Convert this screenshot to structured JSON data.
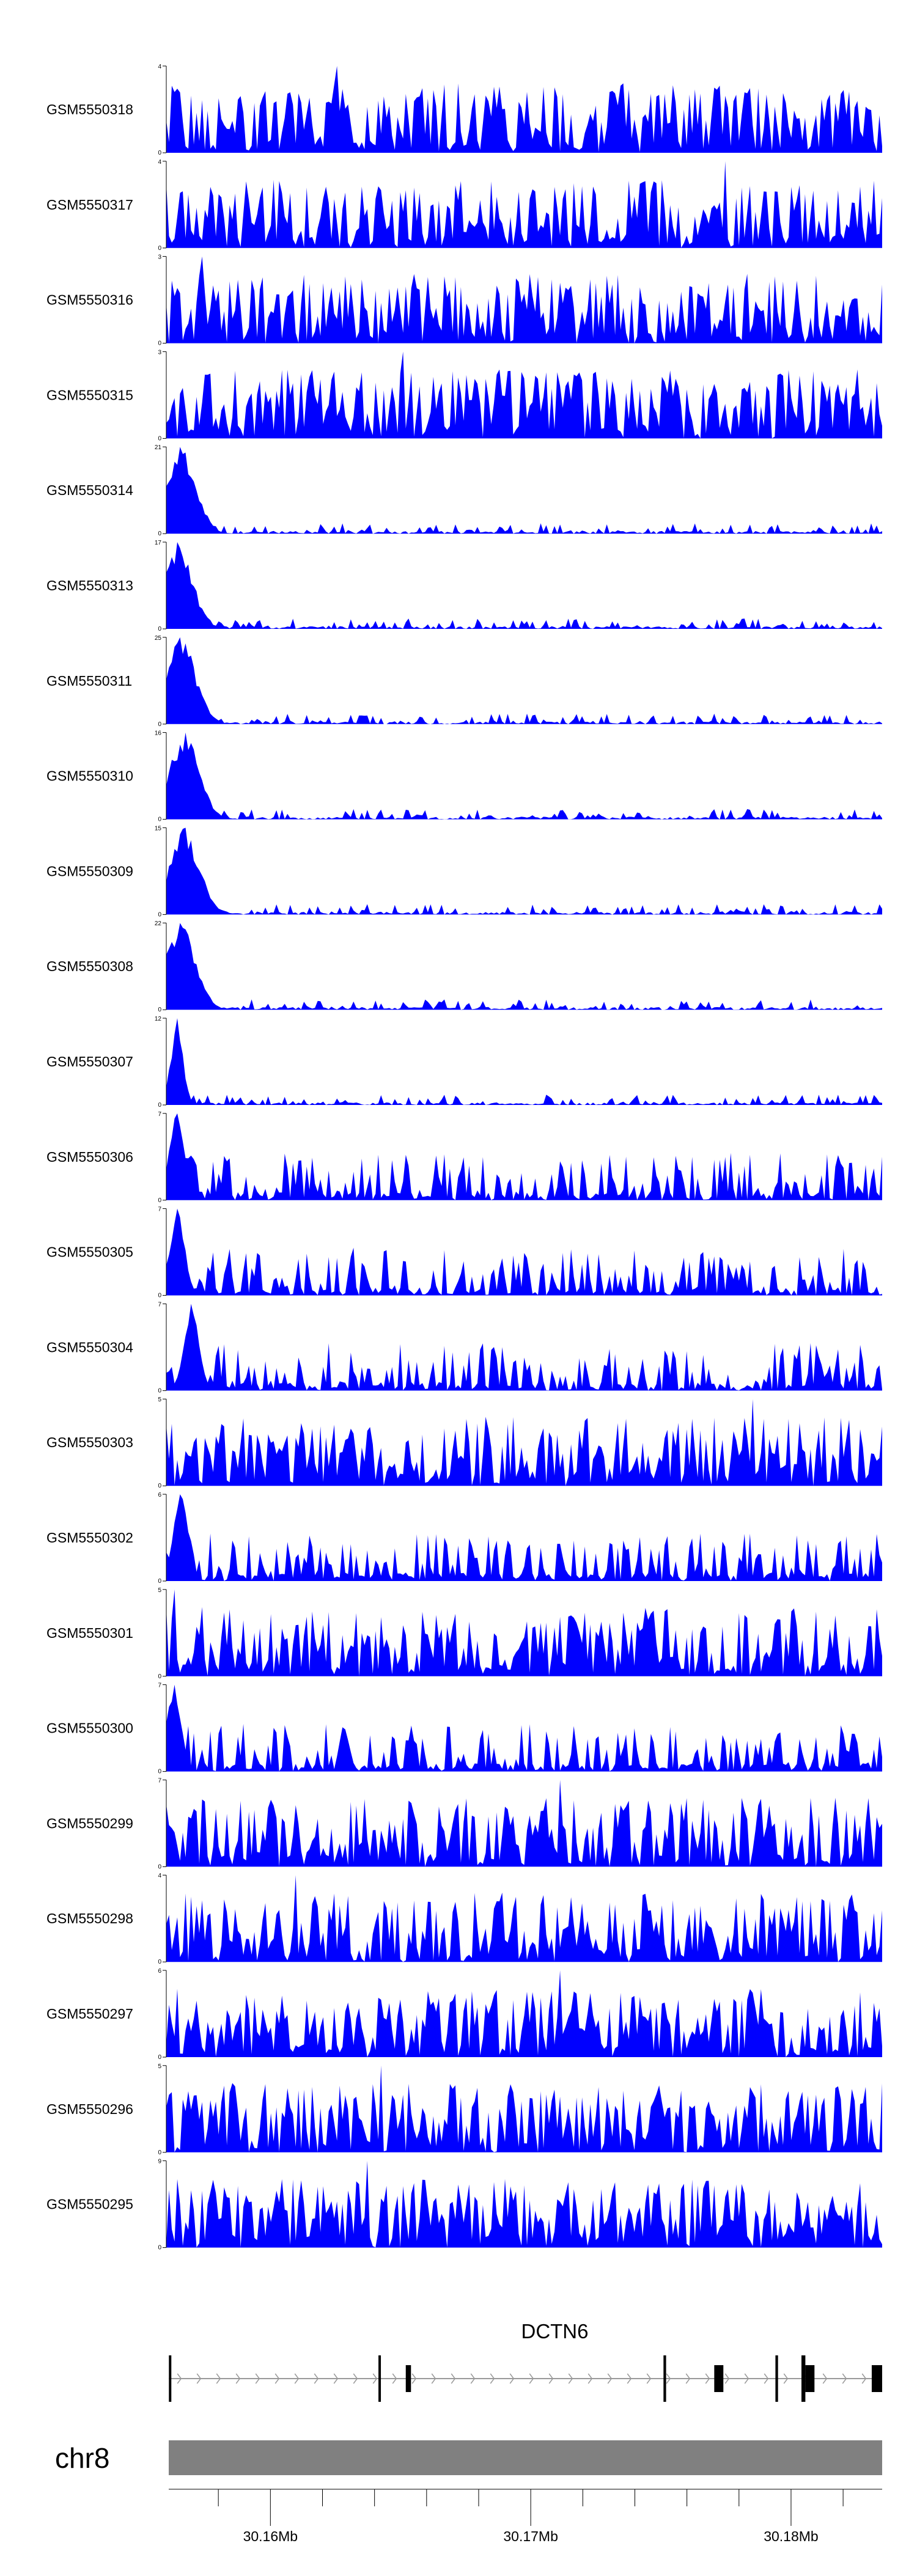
{
  "chart_data": {
    "type": "area",
    "genome": {
      "chromosome": "chr8",
      "start": 30156000,
      "end": 30183500
    },
    "x_axis": {
      "major_ticks": [
        30160000,
        30170000,
        30180000
      ],
      "major_labels": [
        "30.16Mb",
        "30.17Mb",
        "30.18Mb"
      ],
      "minor_ticks": [
        30158000,
        30162000,
        30164000,
        30166000,
        30168000,
        30172000,
        30174000,
        30176000,
        30178000,
        30182000
      ]
    },
    "colors": {
      "signal": "#0000ff",
      "ideogram": "#808080",
      "gene": "#000000",
      "intron": "#999999"
    },
    "tracks": [
      {
        "name": "GSM5550318",
        "ymax": 4,
        "ymax_label": "4",
        "ymin_label": "0",
        "profile": "flat",
        "peak_pos": 0.24,
        "peak_frac": 1.0,
        "seed": 18
      },
      {
        "name": "GSM5550317",
        "ymax": 4,
        "ymax_label": "4",
        "ymin_label": "0",
        "profile": "flat",
        "peak_pos": 0.78,
        "peak_frac": 1.0,
        "seed": 17
      },
      {
        "name": "GSM5550316",
        "ymax": 3,
        "ymax_label": "3",
        "ymin_label": "0",
        "profile": "flat",
        "peak_pos": 0.05,
        "peak_frac": 1.0,
        "seed": 16
      },
      {
        "name": "GSM5550315",
        "ymax": 3,
        "ymax_label": "3",
        "ymin_label": "0",
        "profile": "flat",
        "peak_pos": 0.33,
        "peak_frac": 1.0,
        "seed": 15
      },
      {
        "name": "GSM5550314",
        "ymax": 21,
        "ymax_label": "21",
        "ymin_label": "0",
        "profile": "left",
        "peak_pos": 0.02,
        "peak_frac": 1.0,
        "seed": 14
      },
      {
        "name": "GSM5550313",
        "ymax": 17,
        "ymax_label": "17",
        "ymin_label": "0",
        "profile": "left",
        "peak_pos": 0.015,
        "peak_frac": 1.0,
        "seed": 13
      },
      {
        "name": "GSM5550311",
        "ymax": 25,
        "ymax_label": "25",
        "ymin_label": "0",
        "profile": "left",
        "peak_pos": 0.02,
        "peak_frac": 1.0,
        "seed": 11
      },
      {
        "name": "GSM5550310",
        "ymax": 16,
        "ymax_label": "16",
        "ymin_label": "0",
        "profile": "left",
        "peak_pos": 0.025,
        "peak_frac": 1.0,
        "seed": 10
      },
      {
        "name": "GSM5550309",
        "ymax": 15,
        "ymax_label": "15",
        "ymin_label": "0",
        "profile": "left",
        "peak_pos": 0.025,
        "peak_frac": 1.0,
        "seed": 9
      },
      {
        "name": "GSM5550308",
        "ymax": 22,
        "ymax_label": "22",
        "ymin_label": "0",
        "profile": "left",
        "peak_pos": 0.02,
        "peak_frac": 1.0,
        "seed": 8
      },
      {
        "name": "GSM5550307",
        "ymax": 12,
        "ymax_label": "12",
        "ymin_label": "0",
        "profile": "left-thin",
        "peak_pos": 0.015,
        "peak_frac": 1.0,
        "seed": 7
      },
      {
        "name": "GSM5550306",
        "ymax": 7,
        "ymax_label": "7",
        "ymin_label": "0",
        "profile": "medium",
        "peak_pos": 0.015,
        "peak_frac": 1.0,
        "seed": 6
      },
      {
        "name": "GSM5550305",
        "ymax": 7,
        "ymax_label": "7",
        "ymin_label": "0",
        "profile": "medium",
        "peak_pos": 0.015,
        "peak_frac": 1.0,
        "seed": 5
      },
      {
        "name": "GSM5550304",
        "ymax": 7,
        "ymax_label": "7",
        "ymin_label": "0",
        "profile": "medium",
        "peak_pos": 0.035,
        "peak_frac": 1.0,
        "seed": 4
      },
      {
        "name": "GSM5550303",
        "ymax": 5,
        "ymax_label": "5",
        "ymin_label": "0",
        "profile": "flat",
        "peak_pos": 0.82,
        "peak_frac": 1.0,
        "seed": 3
      },
      {
        "name": "GSM5550302",
        "ymax": 6,
        "ymax_label": "6",
        "ymin_label": "0",
        "profile": "medium",
        "peak_pos": 0.02,
        "peak_frac": 1.0,
        "seed": 2
      },
      {
        "name": "GSM5550301",
        "ymax": 5,
        "ymax_label": "5",
        "ymin_label": "0",
        "profile": "flat",
        "peak_pos": 0.01,
        "peak_frac": 1.0,
        "seed": 1
      },
      {
        "name": "GSM5550300",
        "ymax": 7,
        "ymax_label": "7",
        "ymin_label": "0",
        "profile": "medium",
        "peak_pos": 0.01,
        "peak_frac": 1.0,
        "seed": 100
      },
      {
        "name": "GSM5550299",
        "ymax": 7,
        "ymax_label": "7",
        "ymin_label": "0",
        "profile": "flat",
        "peak_pos": 0.55,
        "peak_frac": 1.0,
        "seed": 99
      },
      {
        "name": "GSM5550298",
        "ymax": 4,
        "ymax_label": "4",
        "ymin_label": "0",
        "profile": "flat",
        "peak_pos": 0.18,
        "peak_frac": 1.0,
        "seed": 98
      },
      {
        "name": "GSM5550297",
        "ymax": 6,
        "ymax_label": "6",
        "ymin_label": "0",
        "profile": "flat",
        "peak_pos": 0.55,
        "peak_frac": 1.0,
        "seed": 97
      },
      {
        "name": "GSM5550296",
        "ymax": 5,
        "ymax_label": "5",
        "ymin_label": "0",
        "profile": "flat",
        "peak_pos": 0.3,
        "peak_frac": 1.0,
        "seed": 96
      },
      {
        "name": "GSM5550295",
        "ymax": 9,
        "ymax_label": "9",
        "ymin_label": "0",
        "profile": "flat",
        "peak_pos": 0.28,
        "peak_frac": 1.0,
        "seed": 95
      }
    ],
    "gene": {
      "name": "DCTN6",
      "strand": "+",
      "start": 30156100,
      "end": 30183500,
      "exons": [
        {
          "start": 30156100,
          "end": 30156140,
          "type": "utr"
        },
        {
          "start": 30164150,
          "end": 30164200,
          "type": "utr"
        },
        {
          "start": 30165200,
          "end": 30165400,
          "type": "cds"
        },
        {
          "start": 30175100,
          "end": 30175200,
          "type": "cds"
        },
        {
          "start": 30177050,
          "end": 30177400,
          "type": "cds"
        },
        {
          "start": 30179400,
          "end": 30179500,
          "type": "cds"
        },
        {
          "start": 30180400,
          "end": 30180550,
          "type": "cds"
        },
        {
          "start": 30180550,
          "end": 30180900,
          "type": "cds"
        },
        {
          "start": 30183100,
          "end": 30183500,
          "type": "cds"
        }
      ]
    }
  }
}
